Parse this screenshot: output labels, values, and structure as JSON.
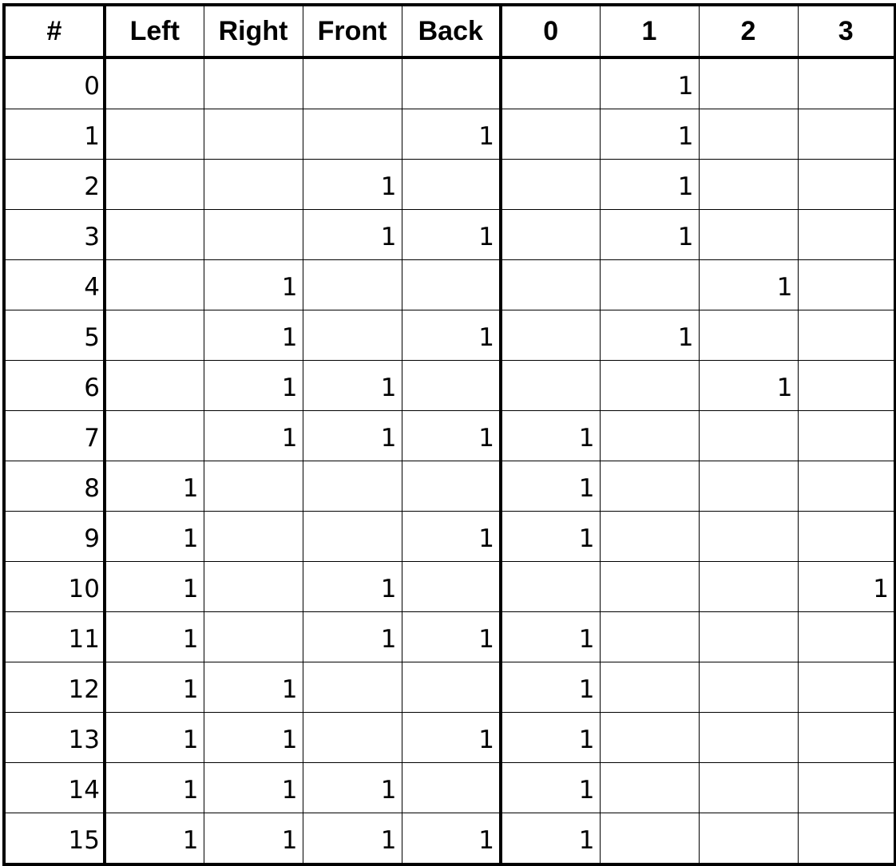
{
  "table": {
    "headers": [
      "#",
      "Left",
      "Right",
      "Front",
      "Back",
      "0",
      "1",
      "2",
      "3"
    ],
    "rows": [
      [
        "0",
        "",
        "",
        "",
        "",
        "",
        "1",
        "",
        ""
      ],
      [
        "1",
        "",
        "",
        "",
        "1",
        "",
        "1",
        "",
        ""
      ],
      [
        "2",
        "",
        "",
        "1",
        "",
        "",
        "1",
        "",
        ""
      ],
      [
        "3",
        "",
        "",
        "1",
        "1",
        "",
        "1",
        "",
        ""
      ],
      [
        "4",
        "",
        "1",
        "",
        "",
        "",
        "",
        "1",
        ""
      ],
      [
        "5",
        "",
        "1",
        "",
        "1",
        "",
        "1",
        "",
        ""
      ],
      [
        "6",
        "",
        "1",
        "1",
        "",
        "",
        "",
        "1",
        ""
      ],
      [
        "7",
        "",
        "1",
        "1",
        "1",
        "1",
        "",
        "",
        ""
      ],
      [
        "8",
        "1",
        "",
        "",
        "",
        "1",
        "",
        "",
        ""
      ],
      [
        "9",
        "1",
        "",
        "",
        "1",
        "1",
        "",
        "",
        ""
      ],
      [
        "10",
        "1",
        "",
        "1",
        "",
        "",
        "",
        "",
        "1"
      ],
      [
        "11",
        "1",
        "",
        "1",
        "1",
        "1",
        "",
        "",
        ""
      ],
      [
        "12",
        "1",
        "1",
        "",
        "",
        "1",
        "",
        "",
        ""
      ],
      [
        "13",
        "1",
        "1",
        "",
        "1",
        "1",
        "",
        "",
        ""
      ],
      [
        "14",
        "1",
        "1",
        "1",
        "",
        "1",
        "",
        "",
        ""
      ],
      [
        "15",
        "1",
        "1",
        "1",
        "1",
        "1",
        "",
        "",
        ""
      ]
    ]
  }
}
